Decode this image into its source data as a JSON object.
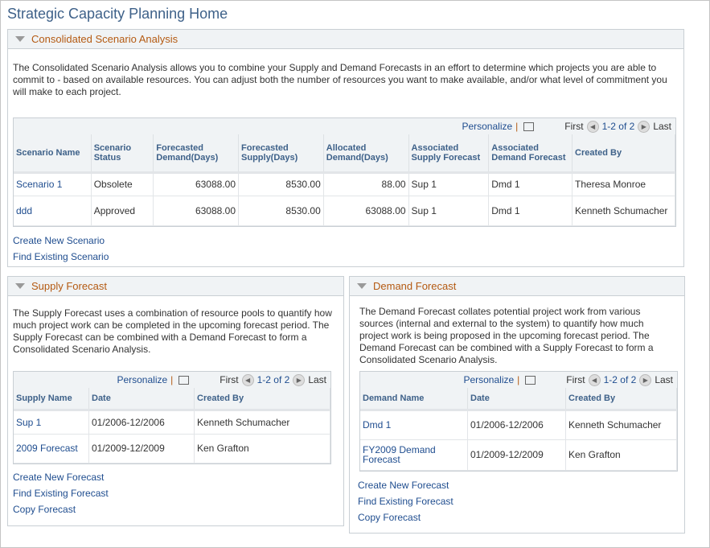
{
  "title": "Strategic Capacity Planning Home",
  "consolidated": {
    "title": "Consolidated Scenario Analysis",
    "description": "The Consolidated Scenario Analysis allows you to combine your Supply and Demand Forecasts in an effort to determine which projects you are able to commit to - based on available resources. You can adjust both the number of resources you want to make available, and/or what level of commitment you will make to each project.",
    "toolbar": {
      "personalize": "Personalize",
      "first": "First",
      "range": "1-2 of 2",
      "last": "Last"
    },
    "columns": [
      "Scenario Name",
      "Scenario Status",
      "Forecasted Demand(Days)",
      "Forecasted Supply(Days)",
      "Allocated Demand(Days)",
      "Associated Supply Forecast",
      "Associated Demand Forecast",
      "Created By"
    ],
    "rows": [
      [
        "Scenario 1",
        "Obsolete",
        "63088.00",
        "8530.00",
        "88.00",
        "Sup 1",
        "Dmd 1",
        "Theresa Monroe"
      ],
      [
        "ddd",
        "Approved",
        "63088.00",
        "8530.00",
        "63088.00",
        "Sup 1",
        "Dmd 1",
        "Kenneth Schumacher"
      ]
    ],
    "links": [
      "Create New Scenario",
      "Find Existing Scenario"
    ]
  },
  "supply": {
    "title": "Supply Forecast",
    "description": "The Supply Forecast uses a combination of resource pools to quantify how much project work can be completed in the upcoming forecast period. The Supply Forecast can be combined with a Demand Forecast to form a Consolidated Scenario Analysis.",
    "toolbar": {
      "personalize": "Personalize",
      "first": "First",
      "range": "1-2 of 2",
      "last": "Last"
    },
    "columns": [
      "Supply Name",
      "Date",
      "Created By"
    ],
    "rows": [
      [
        "Sup 1",
        "01/2006-12/2006",
        "Kenneth Schumacher"
      ],
      [
        "2009 Forecast",
        "01/2009-12/2009",
        "Ken Grafton"
      ]
    ],
    "links": [
      "Create New Forecast",
      "Find Existing Forecast",
      "Copy Forecast"
    ]
  },
  "demand": {
    "title": "Demand Forecast",
    "description": "The Demand Forecast collates potential project work from various sources (internal and external to the system) to quantify how much project work is being proposed in the upcoming forecast period. The Demand Forecast can be combined with a Supply Forecast to form a Consolidated Scenario Analysis.",
    "toolbar": {
      "personalize": "Personalize",
      "first": "First",
      "range": "1-2 of 2",
      "last": "Last"
    },
    "columns": [
      "Demand Name",
      "Date",
      "Created By"
    ],
    "rows": [
      [
        "Dmd 1",
        "01/2006-12/2006",
        "Kenneth Schumacher"
      ],
      [
        "FY2009 Demand Forecast",
        "01/2009-12/2009",
        "Ken Grafton"
      ]
    ],
    "links": [
      "Create New Forecast",
      "Find Existing Forecast",
      "Copy Forecast"
    ]
  }
}
